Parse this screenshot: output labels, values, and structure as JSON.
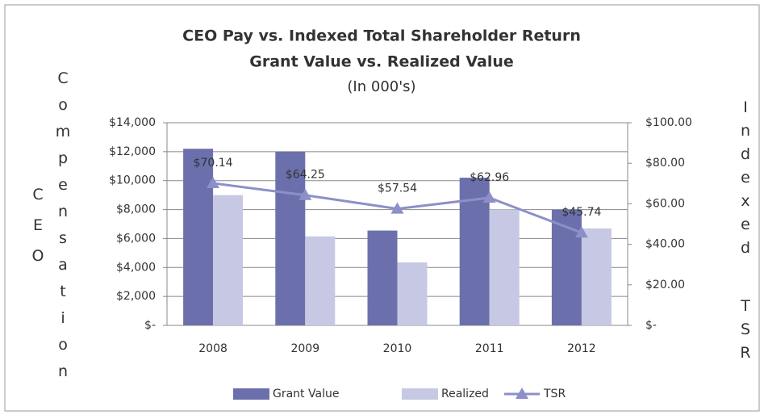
{
  "chart_data": {
    "type": "bar",
    "title": "CEO Pay vs. Indexed Total Shareholder Return",
    "subtitle": "Grant Value vs. Realized Value",
    "note": "(In 000's)",
    "ylabel": [
      "CEO",
      "Compensation"
    ],
    "y2label": [
      "Indexed",
      "TSR"
    ],
    "categories": [
      "2008",
      "2009",
      "2010",
      "2011",
      "2012"
    ],
    "series": [
      {
        "name": "Grant Value",
        "type": "bar",
        "color": "#6b70ad",
        "values": [
          12200,
          12000,
          6550,
          10200,
          8000
        ]
      },
      {
        "name": "Realized",
        "type": "bar",
        "color": "#c7c9e4",
        "values": [
          9000,
          6150,
          4350,
          8000,
          6700
        ]
      },
      {
        "name": "TSR",
        "type": "line",
        "axis": "y2",
        "color": "#8c8fc9",
        "values": [
          70.14,
          64.25,
          57.54,
          62.96,
          45.74
        ],
        "value_labels": [
          "$70.14",
          "$64.25",
          "$57.54",
          "$62.96",
          "$45.74"
        ]
      }
    ],
    "ylim": [
      0,
      14000
    ],
    "yticks": [
      {
        "value": 0,
        "label": "$-"
      },
      {
        "value": 2000,
        "label": "$2,000"
      },
      {
        "value": 4000,
        "label": "$4,000"
      },
      {
        "value": 6000,
        "label": "$6,000"
      },
      {
        "value": 8000,
        "label": "$8,000"
      },
      {
        "value": 10000,
        "label": "$10,000"
      },
      {
        "value": 12000,
        "label": "$12,000"
      },
      {
        "value": 14000,
        "label": "$14,000"
      }
    ],
    "y2lim": [
      0,
      100
    ],
    "y2ticks": [
      {
        "value": 0,
        "label": "$-"
      },
      {
        "value": 20,
        "label": "$20.00"
      },
      {
        "value": 40,
        "label": "$40.00"
      },
      {
        "value": 60,
        "label": "$60.00"
      },
      {
        "value": 80,
        "label": "$80.00"
      },
      {
        "value": 100,
        "label": "$100.00"
      }
    ],
    "grid": true,
    "legend": "bottom"
  }
}
